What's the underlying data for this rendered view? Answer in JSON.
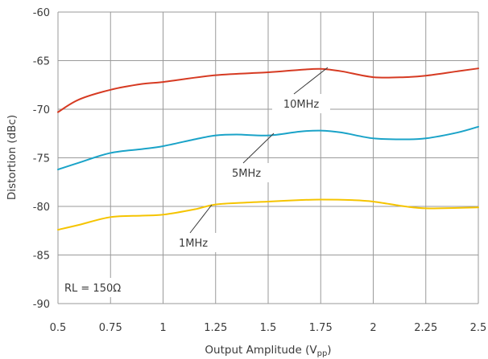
{
  "chart_data": {
    "type": "line",
    "xlabel": "Output Amplitude (V",
    "xlabel_sub": "pp",
    "xlabel_end": ")",
    "ylabel": "Distortion (dBc)",
    "xlim": [
      0.5,
      2.5
    ],
    "ylim": [
      -90,
      -60
    ],
    "grid": true,
    "x_ticks": [
      0.5,
      0.75,
      1,
      1.25,
      1.5,
      1.75,
      2,
      2.25,
      2.5
    ],
    "x_tick_labels": [
      "0.5",
      "0.75",
      "1",
      "1.25",
      "1.5",
      "1.75",
      "2",
      "2.25",
      "2.5"
    ],
    "y_ticks": [
      -60,
      -65,
      -70,
      -75,
      -80,
      -85,
      -90
    ],
    "y_tick_labels": [
      "-60",
      "-65",
      "-70",
      "-75",
      "-80",
      "-85",
      "-90"
    ],
    "series": [
      {
        "name": "10MHz",
        "color": "#d63a22",
        "x": [
          0.5,
          0.6,
          0.75,
          0.9,
          1.0,
          1.25,
          1.5,
          1.65,
          1.75,
          1.85,
          2.0,
          2.15,
          2.25,
          2.4,
          2.5
        ],
        "y": [
          -70.3,
          -69.0,
          -68.0,
          -67.4,
          -67.2,
          -66.5,
          -66.2,
          -65.95,
          -65.85,
          -66.1,
          -66.7,
          -66.7,
          -66.55,
          -66.1,
          -65.8
        ]
      },
      {
        "name": "5MHz",
        "color": "#1aa3c8",
        "x": [
          0.5,
          0.6,
          0.75,
          0.9,
          1.0,
          1.15,
          1.25,
          1.35,
          1.5,
          1.65,
          1.75,
          1.85,
          2.0,
          2.15,
          2.25,
          2.4,
          2.5
        ],
        "y": [
          -76.2,
          -75.5,
          -74.5,
          -74.1,
          -73.8,
          -73.1,
          -72.7,
          -72.6,
          -72.7,
          -72.3,
          -72.2,
          -72.4,
          -73.0,
          -73.1,
          -73.0,
          -72.4,
          -71.8
        ]
      },
      {
        "name": "1MHz",
        "color": "#f5c400",
        "x": [
          0.5,
          0.6,
          0.75,
          0.9,
          1.0,
          1.15,
          1.25,
          1.4,
          1.5,
          1.65,
          1.75,
          1.9,
          2.0,
          2.15,
          2.25,
          2.4,
          2.5
        ],
        "y": [
          -82.4,
          -81.9,
          -81.1,
          -80.95,
          -80.85,
          -80.3,
          -79.8,
          -79.6,
          -79.5,
          -79.35,
          -79.3,
          -79.35,
          -79.5,
          -80.0,
          -80.2,
          -80.15,
          -80.1
        ]
      }
    ],
    "annotations": [
      {
        "text": "10MHz",
        "target_series": "10MHz"
      },
      {
        "text": "5MHz",
        "target_series": "5MHz"
      },
      {
        "text": "1MHz",
        "target_series": "1MHz"
      },
      {
        "text": "RL = 150Ω"
      }
    ]
  }
}
